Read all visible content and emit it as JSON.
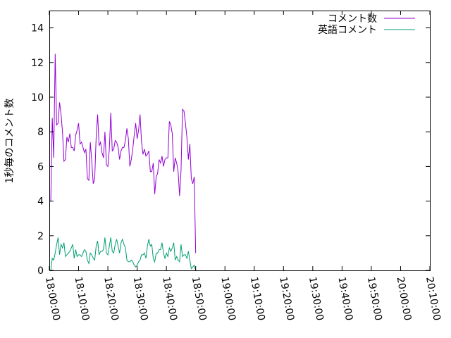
{
  "chart_data": {
    "type": "line",
    "title": "",
    "xlabel": "",
    "ylabel": "1秒毎のコメント数",
    "xlim": [
      "18:00:00",
      "20:10:00"
    ],
    "ylim": [
      0,
      15
    ],
    "x_ticks": [
      "18:00:00",
      "18:10:00",
      "18:20:00",
      "18:30:00",
      "18:40:00",
      "18:50:00",
      "19:00:00",
      "19:10:00",
      "19:20:00",
      "19:30:00",
      "19:40:00",
      "19:50:00",
      "20:00:00",
      "20:10:00"
    ],
    "y_ticks": [
      "0",
      "2",
      "4",
      "6",
      "8",
      "10",
      "12",
      "14"
    ],
    "grid": false,
    "legend_position": "top-right",
    "series": [
      {
        "name": "コメント数",
        "color": "#9400d3",
        "points": [
          [
            "18:00:00",
            4.0
          ],
          [
            "18:00:30",
            4.0
          ],
          [
            "18:01:00",
            8.8
          ],
          [
            "18:01:30",
            6.5
          ],
          [
            "18:02:00",
            12.5
          ],
          [
            "18:02:30",
            8.4
          ],
          [
            "18:03:00",
            8.5
          ],
          [
            "18:03:30",
            9.7
          ],
          [
            "18:04:00",
            9.0
          ],
          [
            "18:04:30",
            8.0
          ],
          [
            "18:05:00",
            6.3
          ],
          [
            "18:05:30",
            6.4
          ],
          [
            "18:06:00",
            7.7
          ],
          [
            "18:06:30",
            7.4
          ],
          [
            "18:07:00",
            7.9
          ],
          [
            "18:07:30",
            7.1
          ],
          [
            "18:08:00",
            7.1
          ],
          [
            "18:08:30",
            6.9
          ],
          [
            "18:09:00",
            7.8
          ],
          [
            "18:09:30",
            8.1
          ],
          [
            "18:10:00",
            8.5
          ],
          [
            "18:10:30",
            7.3
          ],
          [
            "18:11:00",
            7.4
          ],
          [
            "18:11:30",
            7.1
          ],
          [
            "18:12:00",
            6.8
          ],
          [
            "18:12:30",
            7.0
          ],
          [
            "18:13:00",
            5.3
          ],
          [
            "18:13:30",
            5.2
          ],
          [
            "18:14:00",
            7.4
          ],
          [
            "18:14:30",
            6.3
          ],
          [
            "18:15:00",
            5.0
          ],
          [
            "18:15:30",
            5.3
          ],
          [
            "18:16:00",
            7.7
          ],
          [
            "18:16:30",
            9.0
          ],
          [
            "18:17:00",
            7.2
          ],
          [
            "18:17:30",
            7.4
          ],
          [
            "18:18:00",
            6.8
          ],
          [
            "18:18:30",
            6.5
          ],
          [
            "18:19:00",
            8.0
          ],
          [
            "18:19:30",
            6.1
          ],
          [
            "18:20:00",
            6.0
          ],
          [
            "18:20:30",
            7.0
          ],
          [
            "18:21:00",
            9.1
          ],
          [
            "18:21:30",
            6.9
          ],
          [
            "18:22:00",
            7.0
          ],
          [
            "18:22:30",
            7.5
          ],
          [
            "18:23:00",
            7.4
          ],
          [
            "18:23:30",
            7.1
          ],
          [
            "18:24:00",
            6.4
          ],
          [
            "18:24:30",
            6.9
          ],
          [
            "18:25:00",
            7.1
          ],
          [
            "18:25:30",
            7.1
          ],
          [
            "18:26:00",
            7.5
          ],
          [
            "18:26:30",
            8.2
          ],
          [
            "18:27:00",
            7.6
          ],
          [
            "18:27:30",
            6.0
          ],
          [
            "18:28:00",
            6.4
          ],
          [
            "18:28:30",
            7.0
          ],
          [
            "18:29:00",
            7.8
          ],
          [
            "18:29:30",
            8.5
          ],
          [
            "18:30:00",
            7.6
          ],
          [
            "18:30:30",
            8.1
          ],
          [
            "18:31:00",
            9.0
          ],
          [
            "18:31:30",
            7.4
          ],
          [
            "18:32:00",
            6.7
          ],
          [
            "18:32:30",
            7.0
          ],
          [
            "18:33:00",
            6.6
          ],
          [
            "18:33:30",
            6.7
          ],
          [
            "18:34:00",
            6.9
          ],
          [
            "18:34:30",
            5.7
          ],
          [
            "18:35:00",
            5.7
          ],
          [
            "18:35:30",
            6.2
          ],
          [
            "18:36:00",
            4.4
          ],
          [
            "18:36:30",
            5.4
          ],
          [
            "18:37:00",
            5.6
          ],
          [
            "18:37:30",
            6.4
          ],
          [
            "18:38:00",
            6.2
          ],
          [
            "18:38:30",
            6.6
          ],
          [
            "18:39:00",
            6.0
          ],
          [
            "18:39:30",
            6.4
          ],
          [
            "18:40:00",
            6.5
          ],
          [
            "18:40:30",
            6.5
          ],
          [
            "18:41:00",
            8.6
          ],
          [
            "18:41:30",
            8.4
          ],
          [
            "18:42:00",
            7.9
          ],
          [
            "18:42:30",
            5.7
          ],
          [
            "18:43:00",
            6.5
          ],
          [
            "18:43:30",
            6.2
          ],
          [
            "18:44:00",
            5.7
          ],
          [
            "18:44:30",
            4.3
          ],
          [
            "18:45:00",
            5.8
          ],
          [
            "18:45:30",
            9.3
          ],
          [
            "18:46:00",
            9.2
          ],
          [
            "18:46:30",
            8.5
          ],
          [
            "18:47:00",
            7.7
          ],
          [
            "18:47:30",
            6.4
          ],
          [
            "18:48:00",
            7.3
          ],
          [
            "18:48:30",
            5.3
          ],
          [
            "18:49:00",
            5.0
          ],
          [
            "18:49:30",
            5.4
          ],
          [
            "18:50:00",
            1.0
          ]
        ]
      },
      {
        "name": "英語コメント",
        "color": "#009e73",
        "points": [
          [
            "18:00:00",
            0.0
          ],
          [
            "18:00:30",
            0.0
          ],
          [
            "18:01:00",
            0.7
          ],
          [
            "18:01:30",
            0.6
          ],
          [
            "18:02:00",
            1.0
          ],
          [
            "18:02:30",
            1.5
          ],
          [
            "18:03:00",
            1.9
          ],
          [
            "18:03:30",
            0.9
          ],
          [
            "18:04:00",
            1.5
          ],
          [
            "18:04:30",
            1.3
          ],
          [
            "18:05:00",
            1.6
          ],
          [
            "18:05:30",
            0.8
          ],
          [
            "18:06:00",
            0.9
          ],
          [
            "18:06:30",
            1.0
          ],
          [
            "18:07:00",
            1.1
          ],
          [
            "18:07:30",
            1.3
          ],
          [
            "18:08:00",
            1.5
          ],
          [
            "18:08:30",
            0.7
          ],
          [
            "18:09:00",
            1.2
          ],
          [
            "18:09:30",
            0.8
          ],
          [
            "18:10:00",
            0.9
          ],
          [
            "18:10:30",
            0.9
          ],
          [
            "18:11:00",
            0.8
          ],
          [
            "18:11:30",
            1.0
          ],
          [
            "18:12:00",
            1.2
          ],
          [
            "18:12:30",
            1.1
          ],
          [
            "18:13:00",
            0.6
          ],
          [
            "18:13:30",
            0.4
          ],
          [
            "18:14:00",
            1.0
          ],
          [
            "18:14:30",
            0.9
          ],
          [
            "18:15:00",
            0.7
          ],
          [
            "18:15:30",
            0.6
          ],
          [
            "18:16:00",
            1.4
          ],
          [
            "18:16:30",
            1.7
          ],
          [
            "18:17:00",
            0.9
          ],
          [
            "18:17:30",
            1.1
          ],
          [
            "18:18:00",
            1.1
          ],
          [
            "18:18:30",
            1.2
          ],
          [
            "18:19:00",
            1.9
          ],
          [
            "18:19:30",
            1.0
          ],
          [
            "18:20:00",
            0.9
          ],
          [
            "18:20:30",
            1.4
          ],
          [
            "18:21:00",
            1.9
          ],
          [
            "18:21:30",
            1.1
          ],
          [
            "18:22:00",
            1.0
          ],
          [
            "18:22:30",
            1.5
          ],
          [
            "18:23:00",
            1.8
          ],
          [
            "18:23:30",
            1.4
          ],
          [
            "18:24:00",
            1.0
          ],
          [
            "18:24:30",
            1.6
          ],
          [
            "18:25:00",
            1.8
          ],
          [
            "18:25:30",
            1.5
          ],
          [
            "18:26:00",
            1.3
          ],
          [
            "18:26:30",
            0.6
          ],
          [
            "18:27:00",
            0.5
          ],
          [
            "18:27:30",
            0.5
          ],
          [
            "18:28:00",
            0.6
          ],
          [
            "18:28:30",
            0.5
          ],
          [
            "18:29:00",
            0.3
          ],
          [
            "18:29:30",
            0.2
          ],
          [
            "18:30:00",
            0.3
          ],
          [
            "18:30:30",
            0.5
          ],
          [
            "18:31:00",
            0.6
          ],
          [
            "18:31:30",
            0.9
          ],
          [
            "18:32:00",
            0.9
          ],
          [
            "18:32:30",
            1.0
          ],
          [
            "18:33:00",
            0.7
          ],
          [
            "18:33:30",
            1.4
          ],
          [
            "18:34:00",
            1.8
          ],
          [
            "18:34:30",
            1.4
          ],
          [
            "18:35:00",
            1.5
          ],
          [
            "18:35:30",
            0.7
          ],
          [
            "18:36:00",
            0.5
          ],
          [
            "18:36:30",
            1.0
          ],
          [
            "18:37:00",
            1.0
          ],
          [
            "18:37:30",
            1.2
          ],
          [
            "18:38:00",
            1.2
          ],
          [
            "18:38:30",
            1.6
          ],
          [
            "18:39:00",
            1.0
          ],
          [
            "18:39:30",
            0.7
          ],
          [
            "18:40:00",
            1.0
          ],
          [
            "18:40:30",
            0.8
          ],
          [
            "18:41:00",
            1.3
          ],
          [
            "18:41:30",
            1.1
          ],
          [
            "18:42:00",
            1.3
          ],
          [
            "18:42:30",
            1.6
          ],
          [
            "18:43:00",
            0.6
          ],
          [
            "18:43:30",
            0.8
          ],
          [
            "18:44:00",
            0.6
          ],
          [
            "18:44:30",
            0.5
          ],
          [
            "18:45:00",
            1.5
          ],
          [
            "18:45:30",
            0.8
          ],
          [
            "18:46:00",
            0.9
          ],
          [
            "18:46:30",
            0.9
          ],
          [
            "18:47:00",
            0.7
          ],
          [
            "18:47:30",
            1.1
          ],
          [
            "18:48:00",
            0.6
          ],
          [
            "18:48:30",
            0.1
          ],
          [
            "18:49:00",
            0.2
          ],
          [
            "18:49:30",
            0.3
          ],
          [
            "18:50:00",
            0.0
          ]
        ]
      }
    ]
  }
}
